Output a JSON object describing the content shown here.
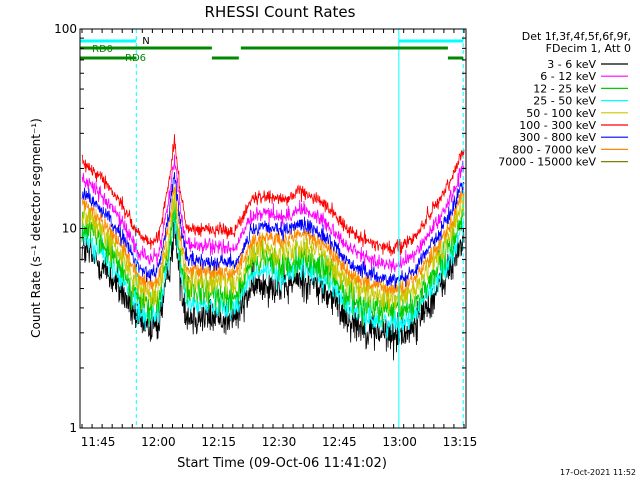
{
  "chart_data": {
    "type": "line",
    "title": "RHESSI Count Rates",
    "xlabel": "Start Time (09-Oct-06 11:41:02)",
    "ylabel": "Count Rate (s⁻¹ detector segment⁻¹)",
    "yscale": "log",
    "ylim": [
      1,
      100
    ],
    "y_ticks": [
      {
        "v": 1,
        "label": "1"
      },
      {
        "v": 10,
        "label": "10"
      },
      {
        "v": 100,
        "label": "100"
      }
    ],
    "xlim_min": [
      -0.5,
      95.5
    ],
    "x_ticks": [
      {
        "t": 4,
        "label": "11:45"
      },
      {
        "t": 19,
        "label": "12:00"
      },
      {
        "t": 34,
        "label": "12:15"
      },
      {
        "t": 49,
        "label": "12:30"
      },
      {
        "t": 64,
        "label": "12:45"
      },
      {
        "t": 79,
        "label": "13:00"
      },
      {
        "t": 94,
        "label": "13:15"
      }
    ],
    "legend_header": [
      "Det 1f,3f,4f,5f,6f,9f,",
      "FDecim 1, Att 0"
    ],
    "legend_position": "right",
    "x_knots": [
      0,
      5,
      10,
      14,
      17,
      19,
      21.5,
      23,
      24.5,
      26,
      30,
      35,
      38,
      42,
      46,
      50,
      54,
      58,
      62,
      66,
      70,
      74,
      77,
      80,
      83,
      86,
      89,
      92,
      94,
      95
    ],
    "base_profile": [
      8.0,
      6.5,
      4.8,
      3.4,
      3.1,
      3.3,
      6.0,
      10.0,
      5.5,
      3.7,
      3.6,
      3.6,
      3.5,
      5.0,
      5.4,
      5.0,
      5.6,
      5.2,
      4.5,
      3.6,
      3.2,
      3.0,
      2.9,
      3.0,
      3.3,
      4.2,
      5.0,
      6.5,
      8.3,
      9.0
    ],
    "series": [
      {
        "name": "3 - 6 keV",
        "color": "#000000",
        "scale": 1.0,
        "noise": 0.11
      },
      {
        "name": "6 - 12 keV",
        "color": "#ff00ff",
        "scale": 2.25,
        "noise": 0.045
      },
      {
        "name": "12 - 25 keV",
        "color": "#00cc00",
        "scale": 1.3,
        "noise": 0.09
      },
      {
        "name": "25 - 50 keV",
        "color": "#00ffff",
        "scale": 1.15,
        "noise": 0.07
      },
      {
        "name": "50 - 100 keV",
        "color": "#c8c800",
        "scale": 1.5,
        "noise": 0.08
      },
      {
        "name": "100 - 300 keV",
        "color": "#ff0000",
        "scale": 2.75,
        "noise": 0.04
      },
      {
        "name": "300 - 800 keV",
        "color": "#0000ff",
        "scale": 1.9,
        "noise": 0.045
      },
      {
        "name": "800 - 7000 keV",
        "color": "#ff8800",
        "scale": 1.7,
        "noise": 0.05
      },
      {
        "name": "7000 - 15000 keV",
        "color": "#808000",
        "scale": 1.0,
        "noise": 0.0
      }
    ],
    "annotations": {
      "n_label": "N",
      "rd0_label": "RD0",
      "rd6_label": "RD6",
      "vlines_solid": [
        78.8
      ],
      "vlines_dashed": [
        13.5,
        94.8
      ],
      "cyan_bars": [
        [
          -0.5,
          13.5
        ],
        [
          78.8,
          94.8
        ]
      ],
      "rd0_bars": [
        [
          -0.5,
          32.3
        ],
        [
          39.5,
          91
        ]
      ],
      "rd6_bars": [
        [
          -0.5,
          13.5
        ],
        [
          32.3,
          39
        ],
        [
          91,
          94.8
        ]
      ]
    },
    "colors": {
      "cyan": "#00ffff",
      "green": "#008800",
      "axis": "#000000",
      "background": "#ffffff"
    }
  },
  "footer": {
    "timestamp": "17-Oct-2021 11:52"
  }
}
